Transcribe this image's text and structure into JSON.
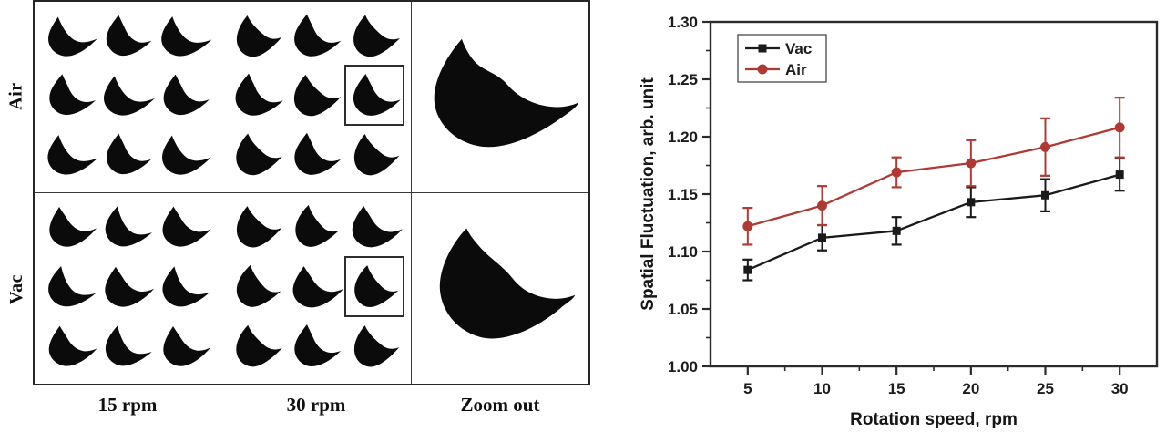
{
  "left_panel": {
    "rows": [
      {
        "label": "Air",
        "cells": [
          {
            "kind": "grid",
            "rpm": "15 rpm",
            "count": 9,
            "style": "air15"
          },
          {
            "kind": "grid",
            "rpm": "30 rpm",
            "count": 9,
            "style": "air30",
            "highlight_index": 5
          },
          {
            "kind": "zoom",
            "style": "airzoom"
          }
        ]
      },
      {
        "label": "Vac",
        "cells": [
          {
            "kind": "grid",
            "rpm": "15 rpm",
            "count": 9,
            "style": "vac15"
          },
          {
            "kind": "grid",
            "rpm": "30 rpm",
            "count": 9,
            "style": "vac30",
            "highlight_index": 5
          },
          {
            "kind": "zoom",
            "style": "vaczoom"
          }
        ]
      }
    ],
    "column_labels": [
      "15 rpm",
      "30 rpm",
      "Zoom out"
    ]
  },
  "chart_data": {
    "type": "line",
    "title": "",
    "xlabel": "Rotation speed, rpm",
    "ylabel": "Spatial Fluctuation, arb. unit",
    "x": [
      5,
      10,
      15,
      20,
      25,
      30
    ],
    "series": [
      {
        "name": "Vac",
        "color": "#1a1a1a",
        "marker": "square",
        "values": [
          1.084,
          1.112,
          1.118,
          1.143,
          1.149,
          1.167
        ],
        "errors": [
          0.009,
          0.011,
          0.012,
          0.013,
          0.014,
          0.014
        ]
      },
      {
        "name": "Air",
        "color": "#b03a33",
        "marker": "circle",
        "values": [
          1.122,
          1.14,
          1.169,
          1.177,
          1.191,
          1.208
        ],
        "errors": [
          0.016,
          0.017,
          0.013,
          0.02,
          0.025,
          0.026
        ]
      }
    ],
    "xlim": [
      2.5,
      32.5
    ],
    "ylim": [
      1.0,
      1.3
    ],
    "xticks": [
      5,
      10,
      15,
      20,
      25,
      30
    ],
    "yticks": [
      1.0,
      1.05,
      1.1,
      1.15,
      1.2,
      1.25,
      1.3
    ],
    "minor_x_step": 2.5,
    "grid": false,
    "legend_position": "top-left"
  },
  "colors": {
    "axis": "#2b2b2b",
    "shape": "#0b0b0b",
    "text": "#1c1c1c"
  }
}
